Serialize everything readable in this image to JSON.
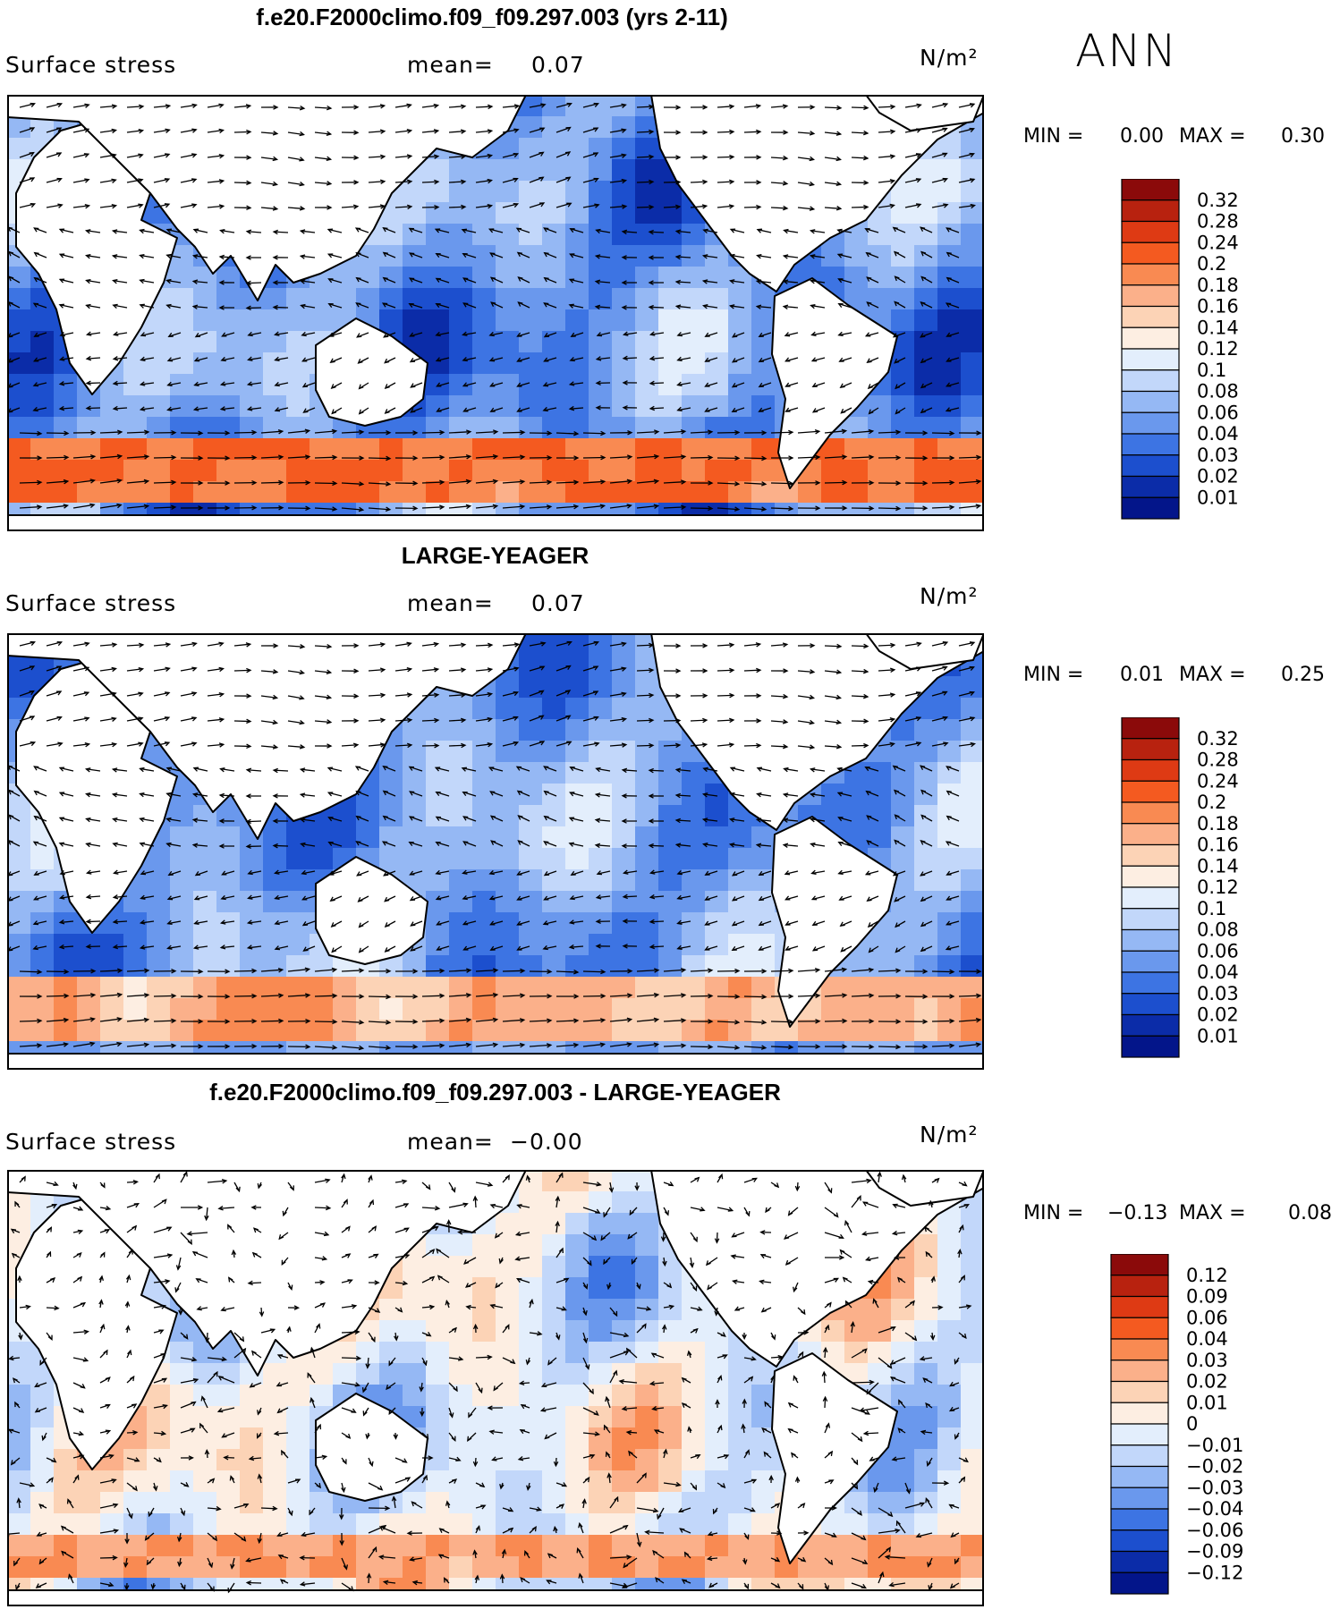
{
  "season": "ANN",
  "panels": [
    {
      "title": "f.e20.F2000climo.f09_f09.297.003 (yrs 2-11)",
      "variable": "Surface stress",
      "mean_label": "mean=",
      "mean_value": "0.07",
      "units": "N/m²",
      "min_label": "MIN =",
      "min_value": "0.00",
      "max_label": "MAX =",
      "max_value": "0.30"
    },
    {
      "title": "LARGE-YEAGER",
      "variable": "Surface stress",
      "mean_label": "mean=",
      "mean_value": "0.07",
      "units": "N/m²",
      "min_label": "MIN =",
      "min_value": "0.01",
      "max_label": "MAX =",
      "max_value": "0.25"
    },
    {
      "title": "f.e20.F2000climo.f09_f09.297.003 - LARGE-YEAGER",
      "variable": "Surface stress",
      "mean_label": "mean=",
      "mean_value": "−0.00",
      "units": "N/m²",
      "min_label": "MIN =",
      "min_value": "−0.13",
      "max_label": "MAX =",
      "max_value": "0.08"
    }
  ],
  "chart_data": [
    {
      "type": "heatmap",
      "title": "f.e20.F2000climo.f09_f09.297.003 (yrs 2-11)",
      "variable": "Surface stress",
      "units": "N/m^2",
      "mean": 0.07,
      "min": 0.0,
      "max": 0.3,
      "colorbar_levels": [
        "0.32",
        "0.28",
        "0.24",
        "0.2",
        "0.18",
        "0.16",
        "0.14",
        "0.12",
        "0.1",
        "0.08",
        "0.06",
        "0.04",
        "0.03",
        "0.02",
        "0.01"
      ],
      "colorbar_colors": [
        "#8b0a0a",
        "#b8220f",
        "#de3a14",
        "#f45a20",
        "#f98a52",
        "#fbb08a",
        "#fcd3b6",
        "#fdeee2",
        "#e3eefc",
        "#c2d7fa",
        "#95b8f4",
        "#6a98ed",
        "#3d74e3",
        "#1c4fce",
        "#0b2ca8",
        "#03158a"
      ]
    },
    {
      "type": "heatmap",
      "title": "LARGE-YEAGER",
      "variable": "Surface stress",
      "units": "N/m^2",
      "mean": 0.07,
      "min": 0.01,
      "max": 0.25,
      "colorbar_levels": [
        "0.32",
        "0.28",
        "0.24",
        "0.2",
        "0.18",
        "0.16",
        "0.14",
        "0.12",
        "0.1",
        "0.08",
        "0.06",
        "0.04",
        "0.03",
        "0.02",
        "0.01"
      ],
      "colorbar_colors": [
        "#8b0a0a",
        "#b8220f",
        "#de3a14",
        "#f45a20",
        "#f98a52",
        "#fbb08a",
        "#fcd3b6",
        "#fdeee2",
        "#e3eefc",
        "#c2d7fa",
        "#95b8f4",
        "#6a98ed",
        "#3d74e3",
        "#1c4fce",
        "#0b2ca8",
        "#03158a"
      ]
    },
    {
      "type": "heatmap",
      "title": "f.e20.F2000climo.f09_f09.297.003 - LARGE-YEAGER",
      "variable": "Surface stress",
      "units": "N/m^2",
      "mean": -0.0,
      "min": -0.13,
      "max": 0.08,
      "colorbar_levels": [
        "0.12",
        "0.09",
        "0.06",
        "0.04",
        "0.03",
        "0.02",
        "0.01",
        "0",
        "−0.01",
        "−0.02",
        "−0.03",
        "−0.04",
        "−0.06",
        "−0.09",
        "−0.12"
      ],
      "colorbar_colors": [
        "#8b0a0a",
        "#b8220f",
        "#de3a14",
        "#f45a20",
        "#f98a52",
        "#fbb08a",
        "#fcd3b6",
        "#fdeee2",
        "#e3eefc",
        "#c2d7fa",
        "#95b8f4",
        "#6a98ed",
        "#3d74e3",
        "#1c4fce",
        "#0b2ca8",
        "#03158a"
      ]
    }
  ]
}
